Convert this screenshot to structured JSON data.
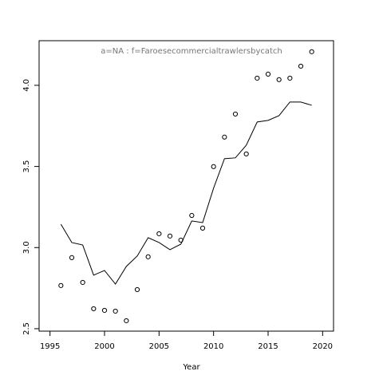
{
  "chart_data": {
    "type": "scatter",
    "title": "a=NA  :  f=Faroesecommercialtrawlersbycatch",
    "x_label": "Year",
    "x": [
      1996,
      1997,
      1998,
      1999,
      2000,
      2001,
      2002,
      2003,
      2004,
      2005,
      2006,
      2007,
      2008,
      2009,
      2010,
      2011,
      2012,
      2013,
      2014,
      2015,
      2016,
      2017,
      2018,
      2019
    ],
    "series": [
      {
        "type": "scatter",
        "color": "#000000",
        "values": [
          2.766,
          2.938,
          2.785,
          2.623,
          2.613,
          2.608,
          2.549,
          2.741,
          2.943,
          3.085,
          3.071,
          3.046,
          3.198,
          3.12,
          3.499,
          3.681,
          3.823,
          3.577,
          4.044,
          4.069,
          4.035,
          4.044,
          4.118,
          4.207
        ]
      },
      {
        "type": "line",
        "color": "#000000",
        "values": [
          3.144,
          3.031,
          3.016,
          2.83,
          2.859,
          2.775,
          2.884,
          2.948,
          3.061,
          3.031,
          2.987,
          3.021,
          3.164,
          3.154,
          3.366,
          3.548,
          3.553,
          3.631,
          3.774,
          3.784,
          3.813,
          3.897,
          3.897,
          3.877
        ]
      }
    ],
    "xlim": [
      1994,
      2021
    ],
    "xticks": [
      1995,
      2000,
      2005,
      2010,
      2015,
      2020
    ],
    "ylim": [
      2.485,
      4.275
    ],
    "yticks": [
      {
        "value": 2.5,
        "label": "2.5"
      },
      {
        "value": 3.0,
        "label": "3.0"
      },
      {
        "value": 3.5,
        "label": "3.5"
      },
      {
        "value": 4.0,
        "label": "4.0"
      }
    ]
  }
}
